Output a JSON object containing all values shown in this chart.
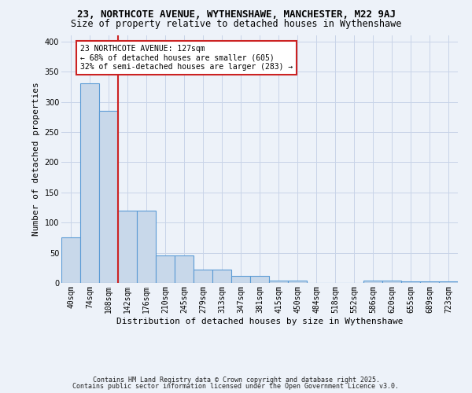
{
  "title1": "23, NORTHCOTE AVENUE, WYTHENSHAWE, MANCHESTER, M22 9AJ",
  "title2": "Size of property relative to detached houses in Wythenshawe",
  "xlabel": "Distribution of detached houses by size in Wythenshawe",
  "ylabel": "Number of detached properties",
  "bin_labels": [
    "40sqm",
    "74sqm",
    "108sqm",
    "142sqm",
    "176sqm",
    "210sqm",
    "245sqm",
    "279sqm",
    "313sqm",
    "347sqm",
    "381sqm",
    "415sqm",
    "450sqm",
    "484sqm",
    "518sqm",
    "552sqm",
    "586sqm",
    "620sqm",
    "655sqm",
    "689sqm",
    "723sqm"
  ],
  "bar_color": "#c8d8ea",
  "bar_edge_color": "#5b9bd5",
  "grid_color": "#c8d4e8",
  "bg_color": "#edf2f9",
  "vline_x": 2.5,
  "vline_color": "#cc2222",
  "annotation_text": "23 NORTHCOTE AVENUE: 127sqm\n← 68% of detached houses are smaller (605)\n32% of semi-detached houses are larger (283) →",
  "annotation_box_color": "#ffffff",
  "annotation_box_edge": "#cc2222",
  "footer1": "Contains HM Land Registry data © Crown copyright and database right 2025.",
  "footer2": "Contains public sector information licensed under the Open Government Licence v3.0.",
  "ylim": [
    0,
    410
  ],
  "bar_heights": [
    75,
    330,
    285,
    120,
    120,
    45,
    45,
    22,
    22,
    12,
    12,
    4,
    4,
    0,
    0,
    0,
    4,
    4,
    2,
    2,
    2
  ],
  "title1_fontsize": 9,
  "title2_fontsize": 8.5,
  "ylabel_fontsize": 8,
  "xlabel_fontsize": 8,
  "tick_fontsize": 7,
  "ann_fontsize": 7,
  "footer_fontsize": 6
}
